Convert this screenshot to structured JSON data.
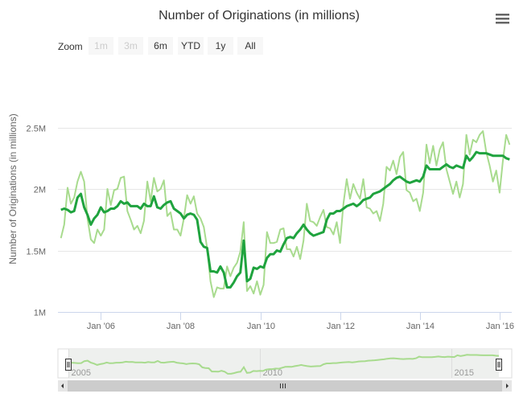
{
  "chart_data": {
    "type": "line",
    "title": "Number of Originations (in millions)",
    "ylabel": "Number of Originations (in millions)",
    "xlabel": "",
    "ylim": [
      1.0,
      2.5
    ],
    "y_unit": "millions",
    "y_tick_labels": [
      "2.5M",
      "2M",
      "1.5M",
      "1M"
    ],
    "y_ticks": [
      2.5,
      2.0,
      1.5,
      1.0
    ],
    "x_tick_labels": [
      "Jan '06",
      "Jan '08",
      "Jan '10",
      "Jan '12",
      "Jan '14",
      "Jan '16"
    ],
    "x_ticks": [
      "2006-01",
      "2008-01",
      "2010-01",
      "2012-01",
      "2014-01",
      "2016-01"
    ],
    "x_start": "2005-01",
    "x_interval": "monthly",
    "grid": true,
    "legend": "none",
    "series": [
      {
        "color": "#a8db8e",
        "values": [
          1.6,
          1.71,
          2.01,
          1.88,
          1.93,
          2.06,
          2.14,
          2.06,
          1.76,
          1.59,
          1.56,
          1.67,
          1.62,
          1.67,
          2.0,
          1.87,
          1.99,
          2.0,
          2.09,
          2.1,
          1.82,
          1.75,
          1.67,
          1.7,
          1.64,
          1.74,
          2.06,
          1.9,
          2.09,
          1.98,
          2.0,
          2.07,
          1.78,
          1.81,
          1.67,
          1.67,
          1.62,
          1.76,
          1.95,
          1.88,
          1.94,
          1.8,
          1.76,
          1.69,
          1.52,
          1.25,
          1.12,
          1.2,
          1.19,
          1.19,
          1.37,
          1.29,
          1.36,
          1.4,
          1.49,
          1.73,
          1.17,
          1.21,
          1.15,
          1.25,
          1.14,
          1.22,
          1.65,
          1.56,
          1.56,
          1.57,
          1.67,
          1.68,
          1.51,
          1.51,
          1.45,
          1.53,
          1.43,
          1.58,
          1.88,
          1.74,
          1.73,
          1.7,
          1.77,
          1.83,
          1.69,
          1.68,
          1.63,
          1.73,
          1.56,
          1.88,
          2.08,
          1.92,
          2.04,
          1.97,
          1.92,
          2.08,
          1.85,
          1.84,
          1.8,
          1.82,
          1.74,
          1.88,
          2.18,
          2.15,
          2.23,
          2.12,
          2.26,
          2.3,
          1.99,
          1.97,
          1.9,
          1.92,
          1.82,
          1.97,
          2.36,
          2.21,
          2.35,
          2.19,
          2.32,
          2.38,
          2.16,
          2.06,
          1.96,
          2.06,
          1.93,
          2.04,
          2.44,
          2.28,
          2.4,
          2.38,
          2.44,
          2.47,
          2.3,
          2.19,
          2.06,
          2.15,
          1.97,
          2.23,
          2.44,
          2.36
        ]
      },
      {
        "color": "#1fa33e",
        "values": [
          1.83,
          1.84,
          1.83,
          1.81,
          1.82,
          1.93,
          1.96,
          1.85,
          1.79,
          1.71,
          1.76,
          1.79,
          1.85,
          1.81,
          1.82,
          1.84,
          1.84,
          1.86,
          1.9,
          1.88,
          1.89,
          1.86,
          1.86,
          1.86,
          1.84,
          1.88,
          1.86,
          1.86,
          1.94,
          1.85,
          1.84,
          1.87,
          1.89,
          1.9,
          1.84,
          1.82,
          1.8,
          1.76,
          1.79,
          1.8,
          1.79,
          1.75,
          1.57,
          1.53,
          1.52,
          1.33,
          1.33,
          1.32,
          1.37,
          1.32,
          1.2,
          1.2,
          1.24,
          1.29,
          1.32,
          1.58,
          1.25,
          1.27,
          1.36,
          1.35,
          1.37,
          1.36,
          1.44,
          1.47,
          1.47,
          1.5,
          1.49,
          1.55,
          1.6,
          1.61,
          1.6,
          1.64,
          1.67,
          1.71,
          1.67,
          1.64,
          1.62,
          1.63,
          1.64,
          1.65,
          1.75,
          1.8,
          1.8,
          1.82,
          1.82,
          1.84,
          1.86,
          1.87,
          1.88,
          1.86,
          1.88,
          1.91,
          1.92,
          1.93,
          1.96,
          1.97,
          1.98,
          2.0,
          2.02,
          2.04,
          2.07,
          2.09,
          2.1,
          2.08,
          2.06,
          2.05,
          2.06,
          2.07,
          2.06,
          2.1,
          2.19,
          2.16,
          2.16,
          2.16,
          2.16,
          2.18,
          2.2,
          2.18,
          2.17,
          2.19,
          2.18,
          2.17,
          2.27,
          2.23,
          2.26,
          2.3,
          2.29,
          2.29,
          2.29,
          2.28,
          2.27,
          2.27,
          2.27,
          2.27,
          2.25,
          2.24
        ]
      }
    ],
    "navigator": {
      "color": "#a8db8e",
      "year_labels": [
        "2005",
        "2010",
        "2015"
      ],
      "year_ticks": [
        "2005-01",
        "2010-01",
        "2015-01"
      ]
    }
  },
  "toolbar": {
    "zoom_label": "Zoom",
    "buttons": [
      {
        "label": "1m",
        "enabled": false
      },
      {
        "label": "3m",
        "enabled": false
      },
      {
        "label": "6m",
        "enabled": true
      },
      {
        "label": "YTD",
        "enabled": true
      },
      {
        "label": "1y",
        "enabled": true
      },
      {
        "label": "All",
        "enabled": true
      }
    ],
    "menu_icon": "hamburger-menu-icon"
  }
}
